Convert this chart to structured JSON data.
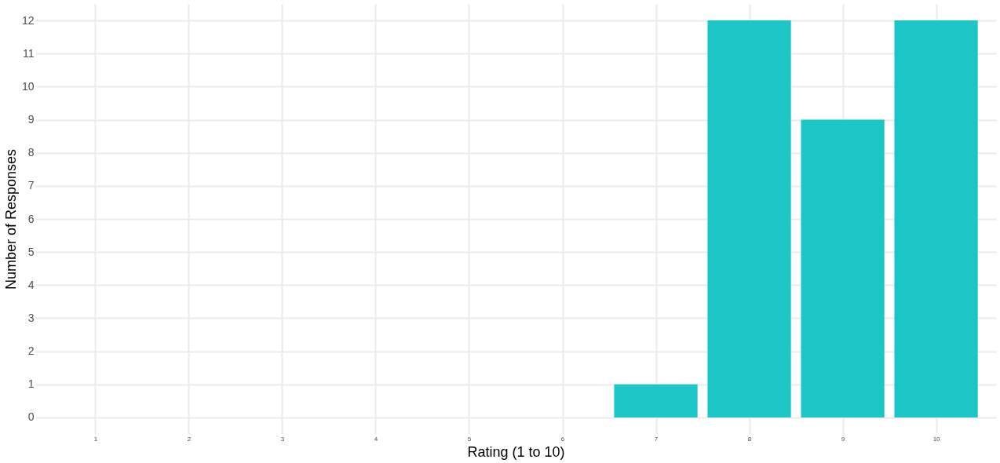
{
  "chart_data": {
    "type": "bar",
    "xlabel": "Rating (1 to 10)",
    "ylabel": "Number of Responses",
    "x": [
      7,
      8,
      9,
      10
    ],
    "series": [
      {
        "color": "#1cc5c6",
        "values": [
          1,
          12,
          9,
          12
        ]
      }
    ],
    "xlim": [
      0.4,
      10.6
    ],
    "xticks": [
      1,
      2,
      3,
      4,
      5,
      6,
      7,
      8,
      9,
      10
    ],
    "ylim": [
      -0.5,
      12.5
    ],
    "yticks": [
      0,
      1,
      2,
      3,
      4,
      5,
      6,
      7,
      8,
      9,
      10,
      11,
      12
    ],
    "grid": true
  }
}
